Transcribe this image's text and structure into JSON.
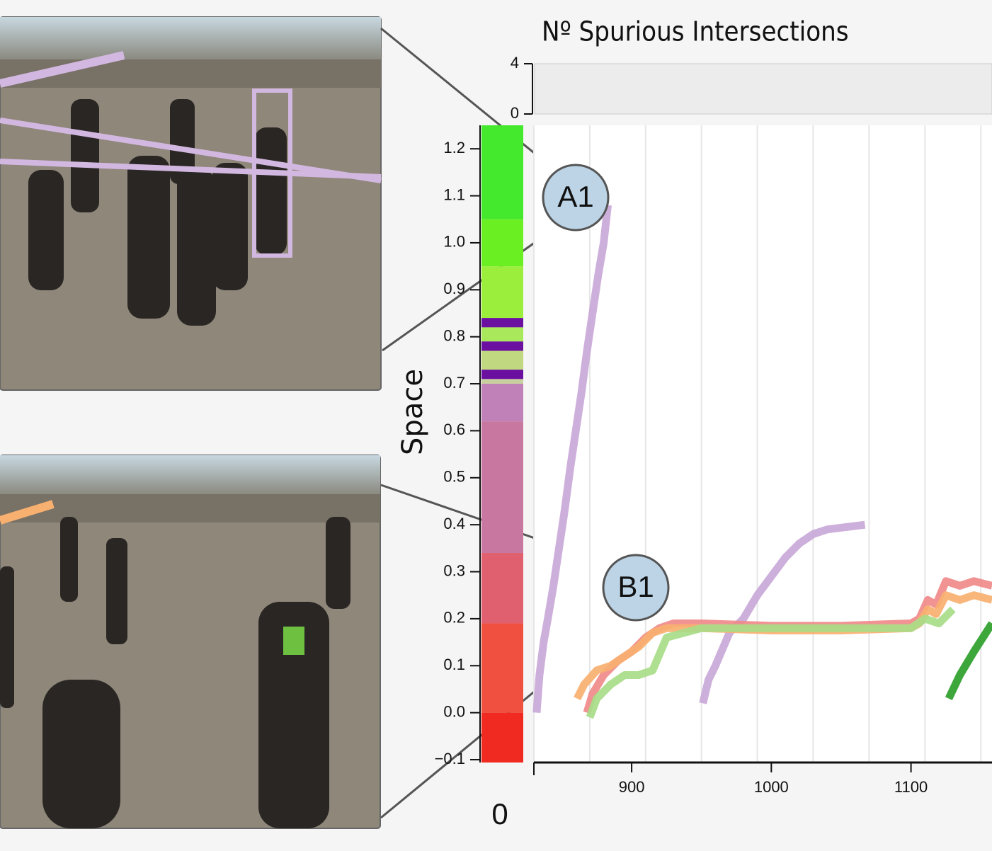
{
  "chart_data": [
    {
      "type": "bar",
      "title": "Nº Spurious Intersections",
      "ylim": [
        0,
        4
      ],
      "yticks": [
        0,
        4
      ]
    },
    {
      "type": "line",
      "y_label": "Space",
      "colorbar_label": "0",
      "xlim": [
        830,
        1158
      ],
      "ylim": [
        -0.106,
        1.25
      ],
      "xticks": [
        900,
        1000,
        1100
      ],
      "xgrid": [
        830,
        870,
        910,
        950,
        990,
        1030,
        1070,
        1110,
        1150
      ],
      "yticks": [
        {
          "value": -0.1,
          "label": "−0.1"
        },
        {
          "value": 0,
          "label": "0.0"
        },
        0.1,
        0.2,
        0.3,
        0.4,
        0.5,
        0.6,
        0.7,
        0.8,
        0.9,
        {
          "value": 1,
          "label": "1.0"
        },
        1.1,
        1.2
      ],
      "colorbar": [
        {
          "from": 1.25,
          "to": 1.05,
          "color": "#44e82c"
        },
        {
          "from": 1.05,
          "to": 0.95,
          "color": "#6af022"
        },
        {
          "from": 0.95,
          "to": 0.84,
          "color": "#9bee3c"
        },
        {
          "from": 0.84,
          "to": 0.82,
          "color": "#6a0fa0"
        },
        {
          "from": 0.82,
          "to": 0.79,
          "color": "#a8e85a"
        },
        {
          "from": 0.79,
          "to": 0.77,
          "color": "#6a0fa0"
        },
        {
          "from": 0.77,
          "to": 0.73,
          "color": "#c0d880"
        },
        {
          "from": 0.73,
          "to": 0.71,
          "color": "#6a0fa0"
        },
        {
          "from": 0.71,
          "to": 0.7,
          "color": "#c8d0a0"
        },
        {
          "from": 0.7,
          "to": 0.62,
          "color": "#c080b8"
        },
        {
          "from": 0.62,
          "to": 0.34,
          "color": "#c878a0"
        },
        {
          "from": 0.34,
          "to": 0.19,
          "color": "#e06070"
        },
        {
          "from": 0.19,
          "to": 0.0,
          "color": "#f05040"
        },
        {
          "from": 0.0,
          "to": -0.106,
          "color": "#f02a20"
        }
      ],
      "series": [
        {
          "color": "#c9a8d8",
          "x": [
            832,
            834,
            837,
            840,
            844,
            848,
            852,
            856,
            860,
            864,
            868,
            872,
            876,
            880,
            883
          ],
          "y": [
            0.0,
            0.08,
            0.15,
            0.2,
            0.27,
            0.35,
            0.43,
            0.52,
            0.6,
            0.68,
            0.77,
            0.85,
            0.93,
            1.0,
            1.08
          ]
        },
        {
          "color": "#c9a8d8",
          "x": [
            951,
            955,
            960,
            970,
            980,
            990,
            1000,
            1010,
            1020,
            1030,
            1040,
            1067
          ],
          "y": [
            0.02,
            0.07,
            0.1,
            0.17,
            0.2,
            0.25,
            0.29,
            0.33,
            0.36,
            0.38,
            0.39,
            0.4
          ]
        },
        {
          "color": "#f08a8a",
          "x": [
            868,
            872,
            880,
            890,
            900,
            910,
            920,
            930,
            950,
            1000,
            1050,
            1100,
            1106,
            1112,
            1118,
            1125,
            1135,
            1145,
            1158
          ],
          "y": [
            0.0,
            0.04,
            0.08,
            0.11,
            0.13,
            0.16,
            0.18,
            0.19,
            0.19,
            0.185,
            0.185,
            0.19,
            0.2,
            0.24,
            0.23,
            0.28,
            0.27,
            0.28,
            0.27
          ]
        },
        {
          "color": "#f8b070",
          "x": [
            861,
            866,
            875,
            885,
            895,
            905,
            915,
            925,
            950,
            1000,
            1050,
            1100,
            1106,
            1112,
            1118,
            1125,
            1135,
            1145,
            1158
          ],
          "y": [
            0.03,
            0.06,
            0.09,
            0.1,
            0.12,
            0.14,
            0.17,
            0.18,
            0.18,
            0.175,
            0.175,
            0.18,
            0.19,
            0.22,
            0.21,
            0.25,
            0.24,
            0.25,
            0.24
          ]
        },
        {
          "color": "#a8dc88",
          "x": [
            870,
            875,
            885,
            895,
            905,
            915,
            925,
            950,
            1000,
            1050,
            1100,
            1110,
            1120,
            1130
          ],
          "y": [
            -0.01,
            0.03,
            0.06,
            0.08,
            0.08,
            0.09,
            0.16,
            0.18,
            0.18,
            0.18,
            0.18,
            0.2,
            0.19,
            0.22
          ]
        },
        {
          "color": "#2ea02a",
          "x": [
            1127,
            1135,
            1145,
            1158
          ],
          "y": [
            0.03,
            0.08,
            0.13,
            0.19
          ]
        }
      ]
    }
  ],
  "callouts": [
    "A1",
    "B1"
  ]
}
